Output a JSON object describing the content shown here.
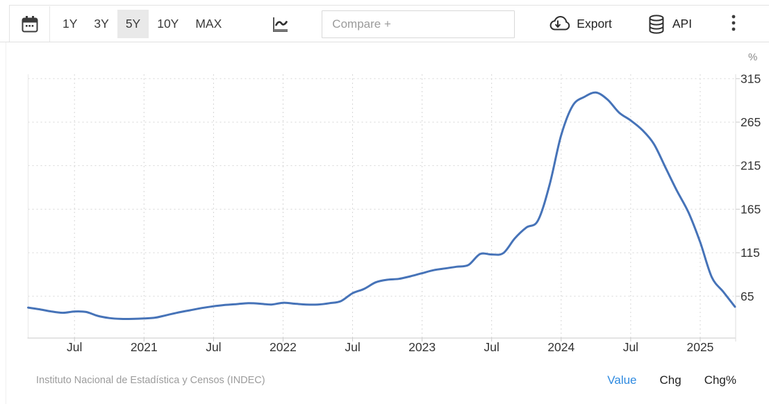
{
  "toolbar": {
    "ranges": [
      "1Y",
      "3Y",
      "5Y",
      "10Y",
      "MAX"
    ],
    "selected_range": "5Y",
    "compare_placeholder": "Compare +",
    "export_label": "Export",
    "api_label": "API"
  },
  "chart": {
    "unit_label": "%",
    "line_color": "#4673b8",
    "grid_color": "#d6d6d6",
    "axis_color": "#c9c9c9",
    "label_color": "#333333"
  },
  "chart_data": {
    "type": "line",
    "x": [
      "2020-03",
      "2020-04",
      "2020-05",
      "2020-06",
      "2020-07",
      "2020-08",
      "2020-09",
      "2020-10",
      "2020-11",
      "2020-12",
      "2021-01",
      "2021-02",
      "2021-03",
      "2021-04",
      "2021-05",
      "2021-06",
      "2021-07",
      "2021-08",
      "2021-09",
      "2021-10",
      "2021-11",
      "2021-12",
      "2022-01",
      "2022-02",
      "2022-03",
      "2022-04",
      "2022-05",
      "2022-06",
      "2022-07",
      "2022-08",
      "2022-09",
      "2022-10",
      "2022-11",
      "2022-12",
      "2023-01",
      "2023-02",
      "2023-03",
      "2023-04",
      "2023-05",
      "2023-06",
      "2023-07",
      "2023-08",
      "2023-09",
      "2023-10",
      "2023-11",
      "2023-12",
      "2024-01",
      "2024-02",
      "2024-03",
      "2024-04",
      "2024-05",
      "2024-06",
      "2024-07",
      "2024-08",
      "2024-09",
      "2024-10",
      "2024-11",
      "2024-12",
      "2025-01",
      "2025-02",
      "2025-03",
      "2025-04"
    ],
    "series": [
      {
        "name": "Value",
        "values": [
          52,
          50,
          47.5,
          46,
          47.5,
          47,
          42.5,
          40,
          39,
          39,
          39.5,
          40.5,
          43.5,
          46.5,
          49,
          51.5,
          53.5,
          55,
          56,
          57,
          56.5,
          55.5,
          57.5,
          56.5,
          55.5,
          55.5,
          57,
          59.5,
          68.5,
          73.5,
          81,
          84,
          85,
          88,
          91.5,
          95,
          97,
          99,
          101,
          113.5,
          113,
          114.5,
          131.5,
          144,
          152,
          193,
          250,
          284,
          294,
          299,
          291,
          276,
          267,
          256,
          240,
          213,
          186,
          161,
          127,
          87,
          70,
          53
        ]
      }
    ],
    "ylim": [
      17,
      320
    ],
    "ylabel": "%",
    "xlabel": "",
    "grid": true,
    "legend_position": "none",
    "y_ticks": [
      315,
      265,
      215,
      165,
      115,
      65
    ],
    "x_ticks": [
      {
        "label": "Jul",
        "month": "2020-07"
      },
      {
        "label": "2021",
        "month": "2021-01"
      },
      {
        "label": "Jul",
        "month": "2021-07"
      },
      {
        "label": "2022",
        "month": "2022-01"
      },
      {
        "label": "Jul",
        "month": "2022-07"
      },
      {
        "label": "2023",
        "month": "2023-01"
      },
      {
        "label": "Jul",
        "month": "2023-07"
      },
      {
        "label": "2024",
        "month": "2024-01"
      },
      {
        "label": "Jul",
        "month": "2024-07"
      },
      {
        "label": "2025",
        "month": "2025-01"
      }
    ]
  },
  "footer": {
    "source": "Instituto Nacional de Estadística y Censos (INDEC)",
    "modes": [
      "Value",
      "Chg",
      "Chg%"
    ],
    "active_mode": "Value",
    "active_color": "#2e8ae0"
  }
}
